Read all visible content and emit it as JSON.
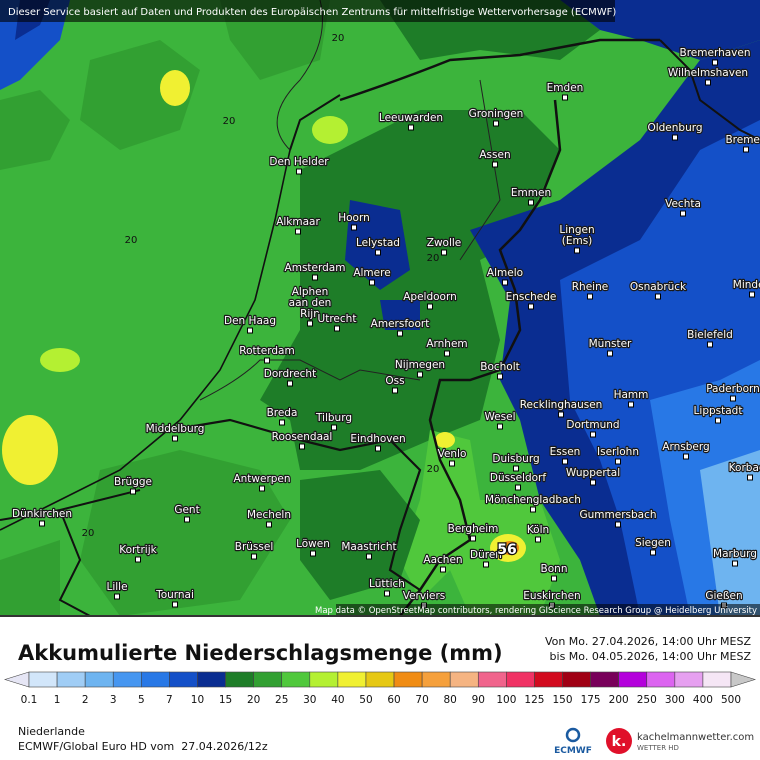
{
  "header": {
    "notice": "Dieser Service basiert auf Daten und Produkten des Europäischen Zentrums für mittelfristige Wettervorhersage (ECMWF)"
  },
  "map": {
    "cities": [
      "Bremerhaven",
      "Wilhelmshaven",
      "Emden",
      "Leeuwarden",
      "Groningen",
      "Oldenburg",
      "Bremen",
      "Den Helder",
      "Assen",
      "Emmen",
      "Vechta",
      "Alkmaar",
      "Hoorn",
      [
        "Lingen",
        "(Ems)"
      ],
      "Lelystad",
      "Zwolle",
      "Amsterdam",
      "Almere",
      "Almelo",
      "Rheine",
      "Osnabrück",
      "Minden",
      [
        "Alphen",
        "aan den",
        "Rijn"
      ],
      "Apeldoorn",
      "Enschede",
      "Utrecht",
      "Amersfoort",
      "Den Haag",
      "Bielefeld",
      "Arnhem",
      "Münster",
      "Rotterdam",
      "Nijmegen",
      "Bocholt",
      "Dordrecht",
      "Oss",
      "Hamm",
      "Paderborn",
      "Recklinghausen",
      "Lippstadt",
      "Breda",
      "Tilburg",
      "Wesel",
      "Dortmund",
      "Middelburg",
      "Roosendaal",
      "Eindhoven",
      "Arnsberg",
      "Essen",
      "Iserlohn",
      "Duisburg",
      "Venlo",
      "Korbach",
      "Wuppertal",
      "Brügge",
      "Antwerpen",
      "Düsseldorf",
      "Mönchengladbach",
      "Dünkirchen",
      "Gent",
      "Mecheln",
      "Gummersbach",
      "Bergheim",
      "Köln",
      "Kortrijk",
      "Brüssel",
      "Löwen",
      "Maastricht",
      "Siegen",
      "Düren",
      "Marburg",
      "Aachen",
      "Bonn",
      "Lille",
      "Tournai",
      "Lüttich",
      "Verviers",
      "Euskirchen",
      "Gießen"
    ],
    "isoline_labels": [
      20,
      20,
      20,
      20,
      20,
      20
    ],
    "max_value": 56,
    "attribution": "Map data © OpenStreetMap contributors, rendering GIScience Research Group @ Heidelberg University"
  },
  "footer": {
    "title": "Akkumulierte Niederschlagsmenge (mm)",
    "period_from": "Von Mo. 27.04.2026, 14:00 Uhr MESZ",
    "period_to": "bis Mo. 04.05.2026, 14:00 Uhr MESZ",
    "legend": {
      "ticks": [
        0.1,
        1,
        2,
        3,
        5,
        7,
        10,
        15,
        20,
        25,
        30,
        40,
        50,
        60,
        70,
        80,
        90,
        100,
        125,
        150,
        175,
        200,
        250,
        300,
        400,
        500
      ],
      "colors": [
        "#e6e6f5",
        "#d2e6fa",
        "#a0cdf5",
        "#6eb4f0",
        "#4696f0",
        "#2878e6",
        "#1450c8",
        "#0a2d91",
        "#1e7d28",
        "#32a032",
        "#50c83c",
        "#b4f032",
        "#f0f032",
        "#e6c814",
        "#f08c14",
        "#f5a03c",
        "#f5b482",
        "#f0648c",
        "#f03264",
        "#d20a1e",
        "#a00014",
        "#78005a",
        "#b400dc",
        "#dc64f0",
        "#e6a0f0",
        "#f5e6f5",
        "#c8c8c8"
      ]
    },
    "region": "Niederlande",
    "model": "ECMWF/Global Euro HD vom  27.04.2026/12z",
    "ecmwf": "ECMWF",
    "site": "kachelmannwetter.com",
    "site_sub": "WETTER HD"
  }
}
